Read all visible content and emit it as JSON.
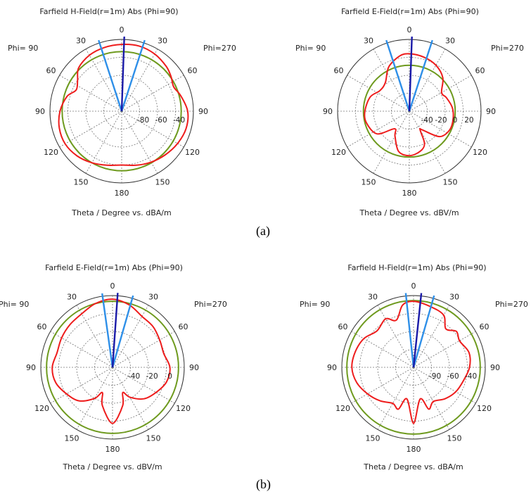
{
  "captions": {
    "a": "(a)",
    "b": "(b)"
  },
  "colors": {
    "pattern": "#ee1c1c",
    "circle": "#6e9a1e",
    "beam_light": "#2e8fe8",
    "beam_dark": "#1a1aa8"
  },
  "chart_data": [
    {
      "type": "polar",
      "title": "Farfield H-Field(r=1m) Abs (Phi=90)",
      "xlabel": "Theta / Degree vs. dBA/m",
      "phi_left": "Phi= 90",
      "phi_right": "Phi=270",
      "angle_labels": [
        "0",
        "30",
        "60",
        "90",
        "120",
        "150",
        "180",
        "150",
        "120",
        "90",
        "60",
        "30"
      ],
      "radial_ticks": [
        "-80",
        "-60",
        "-40"
      ],
      "circle_fraction": 0.83,
      "beams": {
        "light_deg": [
          -18,
          18
        ],
        "dark_deg": [
          2
        ]
      },
      "pattern": {
        "theta_deg": [
          0,
          15,
          30,
          45,
          55,
          65,
          75,
          90,
          105,
          120,
          135,
          150,
          165,
          180,
          195,
          210,
          225,
          240,
          255,
          270,
          285,
          295,
          305,
          315,
          330,
          345
        ],
        "r_frac": [
          0.93,
          0.94,
          0.92,
          0.88,
          0.84,
          0.8,
          0.85,
          0.92,
          0.93,
          0.9,
          0.86,
          0.82,
          0.78,
          0.75,
          0.78,
          0.83,
          0.88,
          0.91,
          0.9,
          0.86,
          0.79,
          0.7,
          0.75,
          0.85,
          0.9,
          0.92
        ]
      }
    },
    {
      "type": "polar",
      "title": "Farfield E-Field(r=1m) Abs (Phi=90)",
      "xlabel": "Theta / Degree vs. dBV/m",
      "phi_left": "Phi= 90",
      "phi_right": "Phi=270",
      "angle_labels": [
        "0",
        "30",
        "60",
        "90",
        "120",
        "150",
        "180",
        "150",
        "120",
        "90",
        "60",
        "30"
      ],
      "radial_ticks": [
        "-40",
        "-20",
        "0",
        "20"
      ],
      "circle_fraction": 0.64,
      "beams": {
        "light_deg": [
          -18,
          18
        ],
        "dark_deg": [
          2
        ]
      },
      "pattern": {
        "theta_deg": [
          0,
          15,
          30,
          45,
          60,
          70,
          85,
          100,
          115,
          130,
          145,
          150,
          155,
          165,
          180,
          195,
          210,
          220,
          235,
          255,
          270,
          290,
          305,
          320,
          335,
          350
        ],
        "r_frac": [
          0.8,
          0.78,
          0.74,
          0.66,
          0.52,
          0.55,
          0.6,
          0.62,
          0.62,
          0.55,
          0.32,
          0.3,
          0.5,
          0.58,
          0.62,
          0.58,
          0.4,
          0.32,
          0.55,
          0.62,
          0.62,
          0.58,
          0.5,
          0.52,
          0.68,
          0.78
        ]
      }
    },
    {
      "type": "polar",
      "title": "Farfield E-Field(r=1m) Abs (Phi=90)",
      "xlabel": "Theta / Degree vs. dBV/m",
      "phi_left": "Phi= 90",
      "phi_right": "Phi=270",
      "angle_labels": [
        "0",
        "30",
        "60",
        "90",
        "120",
        "150",
        "180",
        "150",
        "120",
        "90",
        "60",
        "30"
      ],
      "radial_ticks": [
        "-40",
        "-20",
        "0"
      ],
      "circle_fraction": 0.92,
      "beams": {
        "light_deg": [
          -8,
          16
        ],
        "dark_deg": [
          4
        ]
      },
      "pattern": {
        "theta_deg": [
          0,
          15,
          30,
          45,
          60,
          75,
          90,
          105,
          120,
          135,
          150,
          158,
          165,
          180,
          195,
          202,
          210,
          225,
          240,
          255,
          270,
          285,
          300,
          315,
          330,
          345
        ],
        "r_frac": [
          0.95,
          0.9,
          0.82,
          0.8,
          0.76,
          0.74,
          0.8,
          0.78,
          0.7,
          0.62,
          0.48,
          0.38,
          0.55,
          0.78,
          0.55,
          0.38,
          0.5,
          0.66,
          0.74,
          0.82,
          0.84,
          0.8,
          0.82,
          0.84,
          0.86,
          0.92
        ]
      }
    },
    {
      "type": "polar",
      "title": "Farfield H-Field(r=1m) Abs (Phi=90)",
      "xlabel": "Theta / Degree vs. dBA/m",
      "phi_left": "Phi= 90",
      "phi_right": "Phi=270",
      "angle_labels": [
        "0",
        "30",
        "60",
        "90",
        "120",
        "150",
        "180",
        "150",
        "120",
        "90",
        "60",
        "30"
      ],
      "radial_ticks": [
        "-90",
        "-60",
        "-40"
      ],
      "circle_fraction": 0.93,
      "beams": {
        "light_deg": [
          -6,
          16
        ],
        "dark_deg": [
          6
        ]
      },
      "pattern": {
        "theta_deg": [
          0,
          15,
          30,
          40,
          50,
          60,
          75,
          90,
          105,
          120,
          135,
          150,
          160,
          168,
          180,
          192,
          200,
          210,
          225,
          240,
          255,
          270,
          285,
          300,
          315,
          330,
          340,
          350
        ],
        "r_frac": [
          0.92,
          0.88,
          0.84,
          0.7,
          0.78,
          0.74,
          0.8,
          0.78,
          0.72,
          0.68,
          0.62,
          0.55,
          0.62,
          0.45,
          0.78,
          0.45,
          0.62,
          0.58,
          0.66,
          0.74,
          0.82,
          0.86,
          0.84,
          0.8,
          0.72,
          0.78,
          0.7,
          0.88
        ]
      }
    }
  ]
}
